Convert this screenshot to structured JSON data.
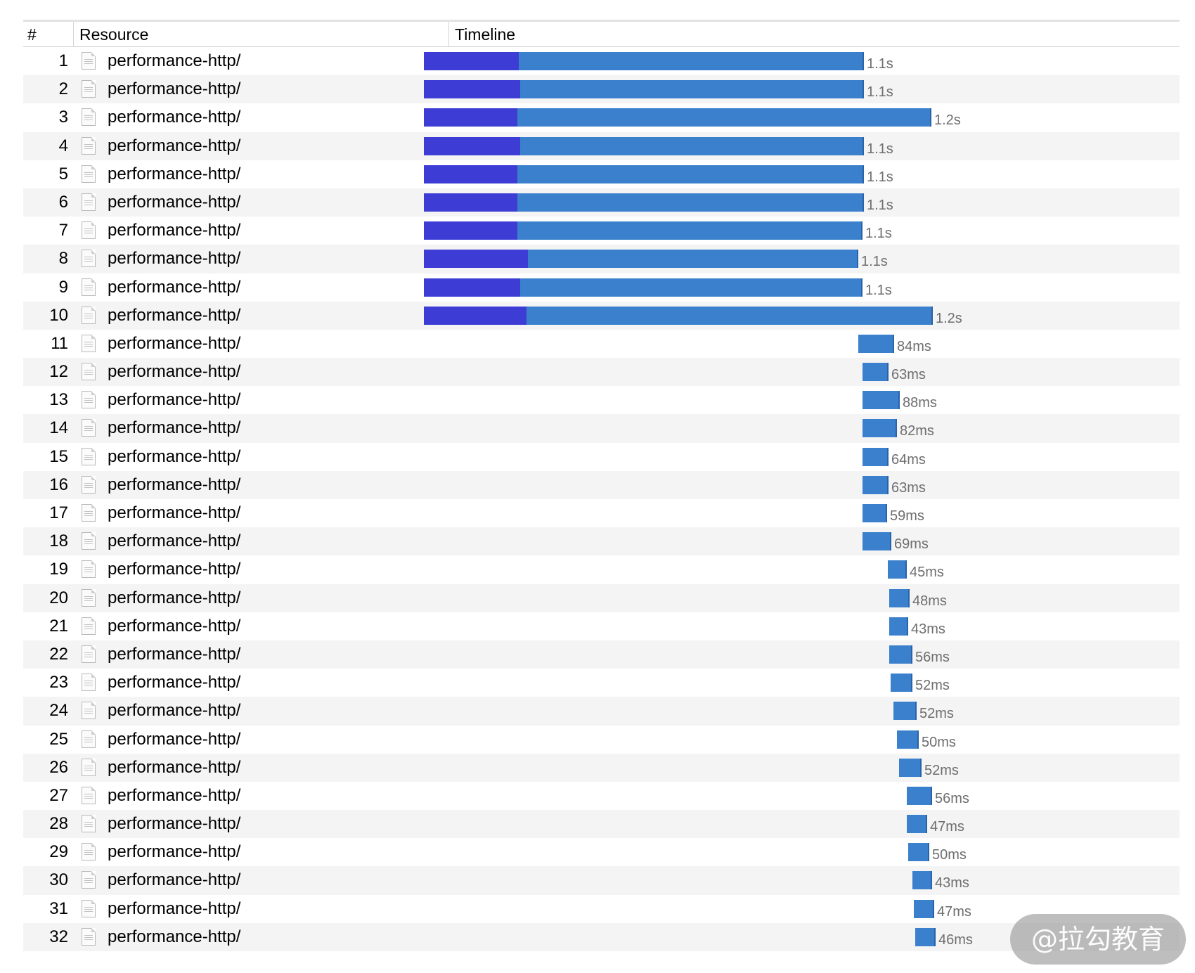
{
  "header": {
    "number": "#",
    "resource": "Resource",
    "timeline": "Timeline"
  },
  "rows": [
    {
      "num": "1",
      "name": "performance-http/",
      "duration": "1.1s"
    },
    {
      "num": "2",
      "name": "performance-http/",
      "duration": "1.1s"
    },
    {
      "num": "3",
      "name": "performance-http/",
      "duration": "1.2s"
    },
    {
      "num": "4",
      "name": "performance-http/",
      "duration": "1.1s"
    },
    {
      "num": "5",
      "name": "performance-http/",
      "duration": "1.1s"
    },
    {
      "num": "6",
      "name": "performance-http/",
      "duration": "1.1s"
    },
    {
      "num": "7",
      "name": "performance-http/",
      "duration": "1.1s"
    },
    {
      "num": "8",
      "name": "performance-http/",
      "duration": "1.1s"
    },
    {
      "num": "9",
      "name": "performance-http/",
      "duration": "1.1s"
    },
    {
      "num": "10",
      "name": "performance-http/",
      "duration": "1.2s"
    },
    {
      "num": "11",
      "name": "performance-http/",
      "duration": "84ms"
    },
    {
      "num": "12",
      "name": "performance-http/",
      "duration": "63ms"
    },
    {
      "num": "13",
      "name": "performance-http/",
      "duration": "88ms"
    },
    {
      "num": "14",
      "name": "performance-http/",
      "duration": "82ms"
    },
    {
      "num": "15",
      "name": "performance-http/",
      "duration": "64ms"
    },
    {
      "num": "16",
      "name": "performance-http/",
      "duration": "63ms"
    },
    {
      "num": "17",
      "name": "performance-http/",
      "duration": "59ms"
    },
    {
      "num": "18",
      "name": "performance-http/",
      "duration": "69ms"
    },
    {
      "num": "19",
      "name": "performance-http/",
      "duration": "45ms"
    },
    {
      "num": "20",
      "name": "performance-http/",
      "duration": "48ms"
    },
    {
      "num": "21",
      "name": "performance-http/",
      "duration": "43ms"
    },
    {
      "num": "22",
      "name": "performance-http/",
      "duration": "56ms"
    },
    {
      "num": "23",
      "name": "performance-http/",
      "duration": "52ms"
    },
    {
      "num": "24",
      "name": "performance-http/",
      "duration": "52ms"
    },
    {
      "num": "25",
      "name": "performance-http/",
      "duration": "50ms"
    },
    {
      "num": "26",
      "name": "performance-http/",
      "duration": "52ms"
    },
    {
      "num": "27",
      "name": "performance-http/",
      "duration": "56ms"
    },
    {
      "num": "28",
      "name": "performance-http/",
      "duration": "47ms"
    },
    {
      "num": "29",
      "name": "performance-http/",
      "duration": "50ms"
    },
    {
      "num": "30",
      "name": "performance-http/",
      "duration": "43ms"
    },
    {
      "num": "31",
      "name": "performance-http/",
      "duration": "47ms"
    },
    {
      "num": "32",
      "name": "performance-http/",
      "duration": "46ms"
    }
  ],
  "colors": {
    "waiting": "#3d3dd6",
    "receiving": "#3b80cc",
    "alt_row": "#f4f4f4"
  },
  "watermark": {
    "text": "@拉勾教育"
  }
}
